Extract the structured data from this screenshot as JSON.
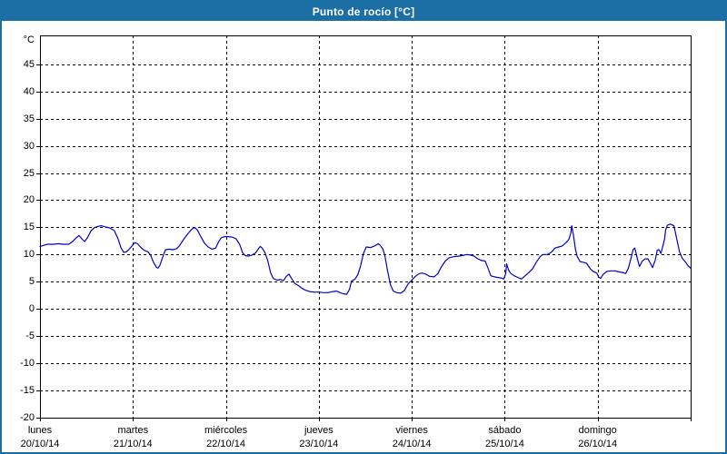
{
  "window": {
    "title": "Punto de rocío [°C]"
  },
  "colors": {
    "accent": "#1c6fa5",
    "line": "#0000cc",
    "grid": "#000000",
    "background": "#ffffff",
    "title_text": "#ffffff"
  },
  "chart_data": {
    "type": "line",
    "title": "Punto de rocío [°C]",
    "xlabel": "",
    "ylabel": "°C",
    "ylim": [
      -20,
      50.3
    ],
    "yticks": [
      45,
      40,
      35,
      30,
      25,
      20,
      15,
      10,
      5,
      0,
      -5,
      -10,
      -15,
      -20
    ],
    "xlim": [
      0,
      7
    ],
    "x_boundary_ticks": [
      0,
      1,
      2,
      3,
      4,
      5,
      6,
      7
    ],
    "grid": "dashed",
    "legend_position": "none",
    "categories": [
      {
        "name": "lunes",
        "date": "20/10/14"
      },
      {
        "name": "martes",
        "date": "21/10/14"
      },
      {
        "name": "miércoles",
        "date": "22/10/14"
      },
      {
        "name": "jueves",
        "date": "23/10/14"
      },
      {
        "name": "viernes",
        "date": "24/10/14"
      },
      {
        "name": "sábado",
        "date": "25/10/14"
      },
      {
        "name": "domingo",
        "date": "26/10/14"
      }
    ],
    "series": [
      {
        "name": "Punto de rocío [°C]",
        "color": "#0000cc",
        "points": [
          [
            0,
            11.5
          ],
          [
            0.04,
            11.7
          ],
          [
            0.08,
            11.9
          ],
          [
            0.14,
            11.9
          ],
          [
            0.2,
            12
          ],
          [
            0.25,
            11.9
          ],
          [
            0.31,
            11.9
          ],
          [
            0.35,
            12.4
          ],
          [
            0.39,
            13.1
          ],
          [
            0.42,
            13.5
          ],
          [
            0.45,
            12.9
          ],
          [
            0.48,
            12.4
          ],
          [
            0.51,
            13.1
          ],
          [
            0.55,
            14.4
          ],
          [
            0.59,
            15
          ],
          [
            0.63,
            15.2
          ],
          [
            0.66,
            15.3
          ],
          [
            0.7,
            15.1
          ],
          [
            0.75,
            14.9
          ],
          [
            0.8,
            14.4
          ],
          [
            0.84,
            12.9
          ],
          [
            0.87,
            11.3
          ],
          [
            0.9,
            10.4
          ],
          [
            0.93,
            10.5
          ],
          [
            0.96,
            11
          ],
          [
            0.99,
            11.6
          ],
          [
            1.02,
            12.2
          ],
          [
            1.05,
            12
          ],
          [
            1.08,
            11.4
          ],
          [
            1.12,
            10.8
          ],
          [
            1.16,
            10.5
          ],
          [
            1.19,
            9.9
          ],
          [
            1.22,
            8.6
          ],
          [
            1.25,
            7.7
          ],
          [
            1.27,
            7.5
          ],
          [
            1.29,
            8
          ],
          [
            1.32,
            9.5
          ],
          [
            1.35,
            10.9
          ],
          [
            1.39,
            11
          ],
          [
            1.43,
            10.9
          ],
          [
            1.47,
            11.1
          ],
          [
            1.5,
            11.6
          ],
          [
            1.55,
            12.9
          ],
          [
            1.59,
            13.8
          ],
          [
            1.63,
            14.6
          ],
          [
            1.66,
            15
          ],
          [
            1.69,
            14.6
          ],
          [
            1.73,
            13.3
          ],
          [
            1.77,
            12.1
          ],
          [
            1.81,
            11.4
          ],
          [
            1.85,
            11
          ],
          [
            1.89,
            11.2
          ],
          [
            1.92,
            12.3
          ],
          [
            1.95,
            13.1
          ],
          [
            1.99,
            13.3
          ],
          [
            2.03,
            13.3
          ],
          [
            2.07,
            13.2
          ],
          [
            2.11,
            12.9
          ],
          [
            2.15,
            11.8
          ],
          [
            2.18,
            10.3
          ],
          [
            2.21,
            9.8
          ],
          [
            2.24,
            9.7
          ],
          [
            2.28,
            9.9
          ],
          [
            2.32,
            10.3
          ],
          [
            2.35,
            11.1
          ],
          [
            2.37,
            11.5
          ],
          [
            2.39,
            11.2
          ],
          [
            2.42,
            10.4
          ],
          [
            2.45,
            8.9
          ],
          [
            2.48,
            6.7
          ],
          [
            2.51,
            5.6
          ],
          [
            2.55,
            5.3
          ],
          [
            2.59,
            5.4
          ],
          [
            2.62,
            5.2
          ],
          [
            2.65,
            6
          ],
          [
            2.68,
            6.4
          ],
          [
            2.71,
            5.5
          ],
          [
            2.74,
            4.7
          ],
          [
            2.78,
            4.3
          ],
          [
            2.81,
            3.9
          ],
          [
            2.85,
            3.5
          ],
          [
            2.9,
            3.2
          ],
          [
            2.95,
            3.1
          ],
          [
            3,
            3.1
          ],
          [
            3.05,
            3
          ],
          [
            3.1,
            3
          ],
          [
            3.15,
            3.2
          ],
          [
            3.19,
            3.3
          ],
          [
            3.23,
            3
          ],
          [
            3.26,
            2.8
          ],
          [
            3.3,
            2.7
          ],
          [
            3.33,
            3.6
          ],
          [
            3.35,
            5.1
          ],
          [
            3.39,
            5.5
          ],
          [
            3.42,
            6.3
          ],
          [
            3.45,
            8
          ],
          [
            3.48,
            10.2
          ],
          [
            3.51,
            11.4
          ],
          [
            3.56,
            11.3
          ],
          [
            3.6,
            11.6
          ],
          [
            3.64,
            12
          ],
          [
            3.66,
            11.7
          ],
          [
            3.69,
            11
          ],
          [
            3.71,
            9.8
          ],
          [
            3.74,
            7
          ],
          [
            3.77,
            4.5
          ],
          [
            3.8,
            3.3
          ],
          [
            3.84,
            3
          ],
          [
            3.88,
            2.9
          ],
          [
            3.92,
            3.4
          ],
          [
            3.96,
            4.6
          ],
          [
            4,
            5.3
          ],
          [
            4.04,
            6
          ],
          [
            4.08,
            6.5
          ],
          [
            4.11,
            6.6
          ],
          [
            4.15,
            6.4
          ],
          [
            4.19,
            6
          ],
          [
            4.24,
            5.9
          ],
          [
            4.28,
            6.5
          ],
          [
            4.32,
            7.8
          ],
          [
            4.36,
            8.8
          ],
          [
            4.4,
            9.4
          ],
          [
            4.45,
            9.6
          ],
          [
            4.5,
            9.7
          ],
          [
            4.54,
            9.8
          ],
          [
            4.59,
            10
          ],
          [
            4.63,
            9.9
          ],
          [
            4.67,
            9.7
          ],
          [
            4.71,
            9.2
          ],
          [
            4.75,
            8.9
          ],
          [
            4.79,
            8.8
          ],
          [
            4.82,
            7.5
          ],
          [
            4.85,
            6.1
          ],
          [
            4.89,
            5.9
          ],
          [
            4.92,
            5.8
          ],
          [
            4.96,
            5.7
          ],
          [
            4.99,
            5.5
          ],
          [
            5.01,
            6.5
          ],
          [
            5.02,
            8.3
          ],
          [
            5.04,
            7.2
          ],
          [
            5.06,
            6.6
          ],
          [
            5.1,
            6.1
          ],
          [
            5.14,
            5.8
          ],
          [
            5.18,
            5.5
          ],
          [
            5.22,
            6.1
          ],
          [
            5.26,
            6.7
          ],
          [
            5.3,
            7.4
          ],
          [
            5.34,
            8.6
          ],
          [
            5.38,
            9.6
          ],
          [
            5.41,
            10
          ],
          [
            5.46,
            10
          ],
          [
            5.5,
            10.4
          ],
          [
            5.54,
            11.2
          ],
          [
            5.58,
            11.4
          ],
          [
            5.62,
            11.6
          ],
          [
            5.66,
            12.2
          ],
          [
            5.69,
            12.8
          ],
          [
            5.71,
            13.9
          ],
          [
            5.72,
            15.3
          ],
          [
            5.74,
            13.5
          ],
          [
            5.76,
            11
          ],
          [
            5.78,
            9.6
          ],
          [
            5.81,
            8.7
          ],
          [
            5.84,
            8.6
          ],
          [
            5.88,
            8.4
          ],
          [
            5.92,
            7.4
          ],
          [
            5.95,
            6.9
          ],
          [
            5.99,
            6.6
          ],
          [
            6.01,
            5.9
          ],
          [
            6.03,
            5.6
          ],
          [
            6.06,
            6.4
          ],
          [
            6.1,
            6.9
          ],
          [
            6.14,
            7
          ],
          [
            6.19,
            7
          ],
          [
            6.23,
            6.8
          ],
          [
            6.27,
            6.7
          ],
          [
            6.3,
            6.5
          ],
          [
            6.33,
            7.5
          ],
          [
            6.36,
            9.4
          ],
          [
            6.38,
            10.9
          ],
          [
            6.4,
            11.2
          ],
          [
            6.43,
            9
          ],
          [
            6.45,
            7.8
          ],
          [
            6.48,
            8.8
          ],
          [
            6.51,
            9.2
          ],
          [
            6.54,
            9.2
          ],
          [
            6.57,
            8.3
          ],
          [
            6.59,
            7.6
          ],
          [
            6.62,
            9
          ],
          [
            6.64,
            10.8
          ],
          [
            6.66,
            10.9
          ],
          [
            6.68,
            10.2
          ],
          [
            6.7,
            11.5
          ],
          [
            6.72,
            12.9
          ],
          [
            6.73,
            14.5
          ],
          [
            6.75,
            15.4
          ],
          [
            6.78,
            15.6
          ],
          [
            6.82,
            15.3
          ],
          [
            6.85,
            12.9
          ],
          [
            6.88,
            10.5
          ],
          [
            6.91,
            9.3
          ],
          [
            6.94,
            8.7
          ],
          [
            6.97,
            8
          ],
          [
            7,
            7.5
          ]
        ]
      }
    ]
  }
}
